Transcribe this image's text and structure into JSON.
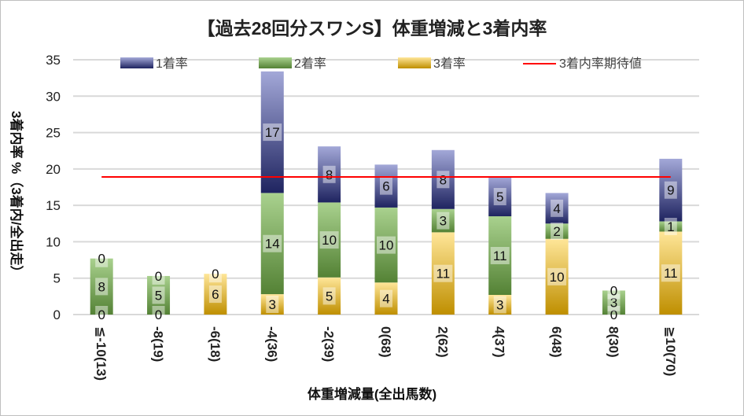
{
  "chart_data": {
    "type": "bar",
    "stacked": true,
    "title": "【過去28回分スワンS】体重増減と3着内率",
    "xlabel": "体重増減量(全出馬数)",
    "ylabel": "3着内率 %（3着内/全出走）",
    "ylim": [
      0,
      35
    ],
    "yticks": [
      0,
      5,
      10,
      15,
      20,
      25,
      30,
      35
    ],
    "grid": true,
    "legend": "top",
    "categories": [
      "≦-10(13)",
      "-8(19)",
      "-6(18)",
      "-4(36)",
      "-2(39)",
      "0(68)",
      "2(62)",
      "4(37)",
      "6(48)",
      "8(30)",
      "≧10(70)"
    ],
    "series": [
      {
        "name": "3着率",
        "color_top": "#ffe699",
        "color_bottom": "#bf8f00",
        "values": [
          0,
          0,
          5.6,
          2.8,
          5.1,
          4.4,
          11.3,
          2.7,
          10.4,
          0,
          11.4
        ],
        "labels": [
          "0",
          "0",
          "6",
          "3",
          "5",
          "4",
          "11",
          "3",
          "10",
          "0",
          "11"
        ]
      },
      {
        "name": "2着率",
        "color_top": "#a9d18e",
        "color_bottom": "#548235",
        "values": [
          7.7,
          5.3,
          0,
          13.9,
          10.3,
          10.3,
          3.2,
          10.8,
          2.1,
          3.3,
          1.4
        ],
        "labels": [
          "8",
          "5",
          "",
          "14",
          "10",
          "10",
          "3",
          "11",
          "2",
          "3",
          "1"
        ]
      },
      {
        "name": "1着率",
        "color_top": "#a3a8d8",
        "color_bottom": "#1f2460",
        "values": [
          0,
          0,
          0,
          16.7,
          7.7,
          5.9,
          8.1,
          5.4,
          4.2,
          0,
          8.6
        ],
        "labels": [
          "0",
          "0",
          "0",
          "17",
          "8",
          "6",
          "8",
          "5",
          "4",
          "0",
          "9"
        ]
      }
    ],
    "reference_line": {
      "name": "3着内率期待値",
      "value": 18.9,
      "color": "#ff0000"
    }
  }
}
